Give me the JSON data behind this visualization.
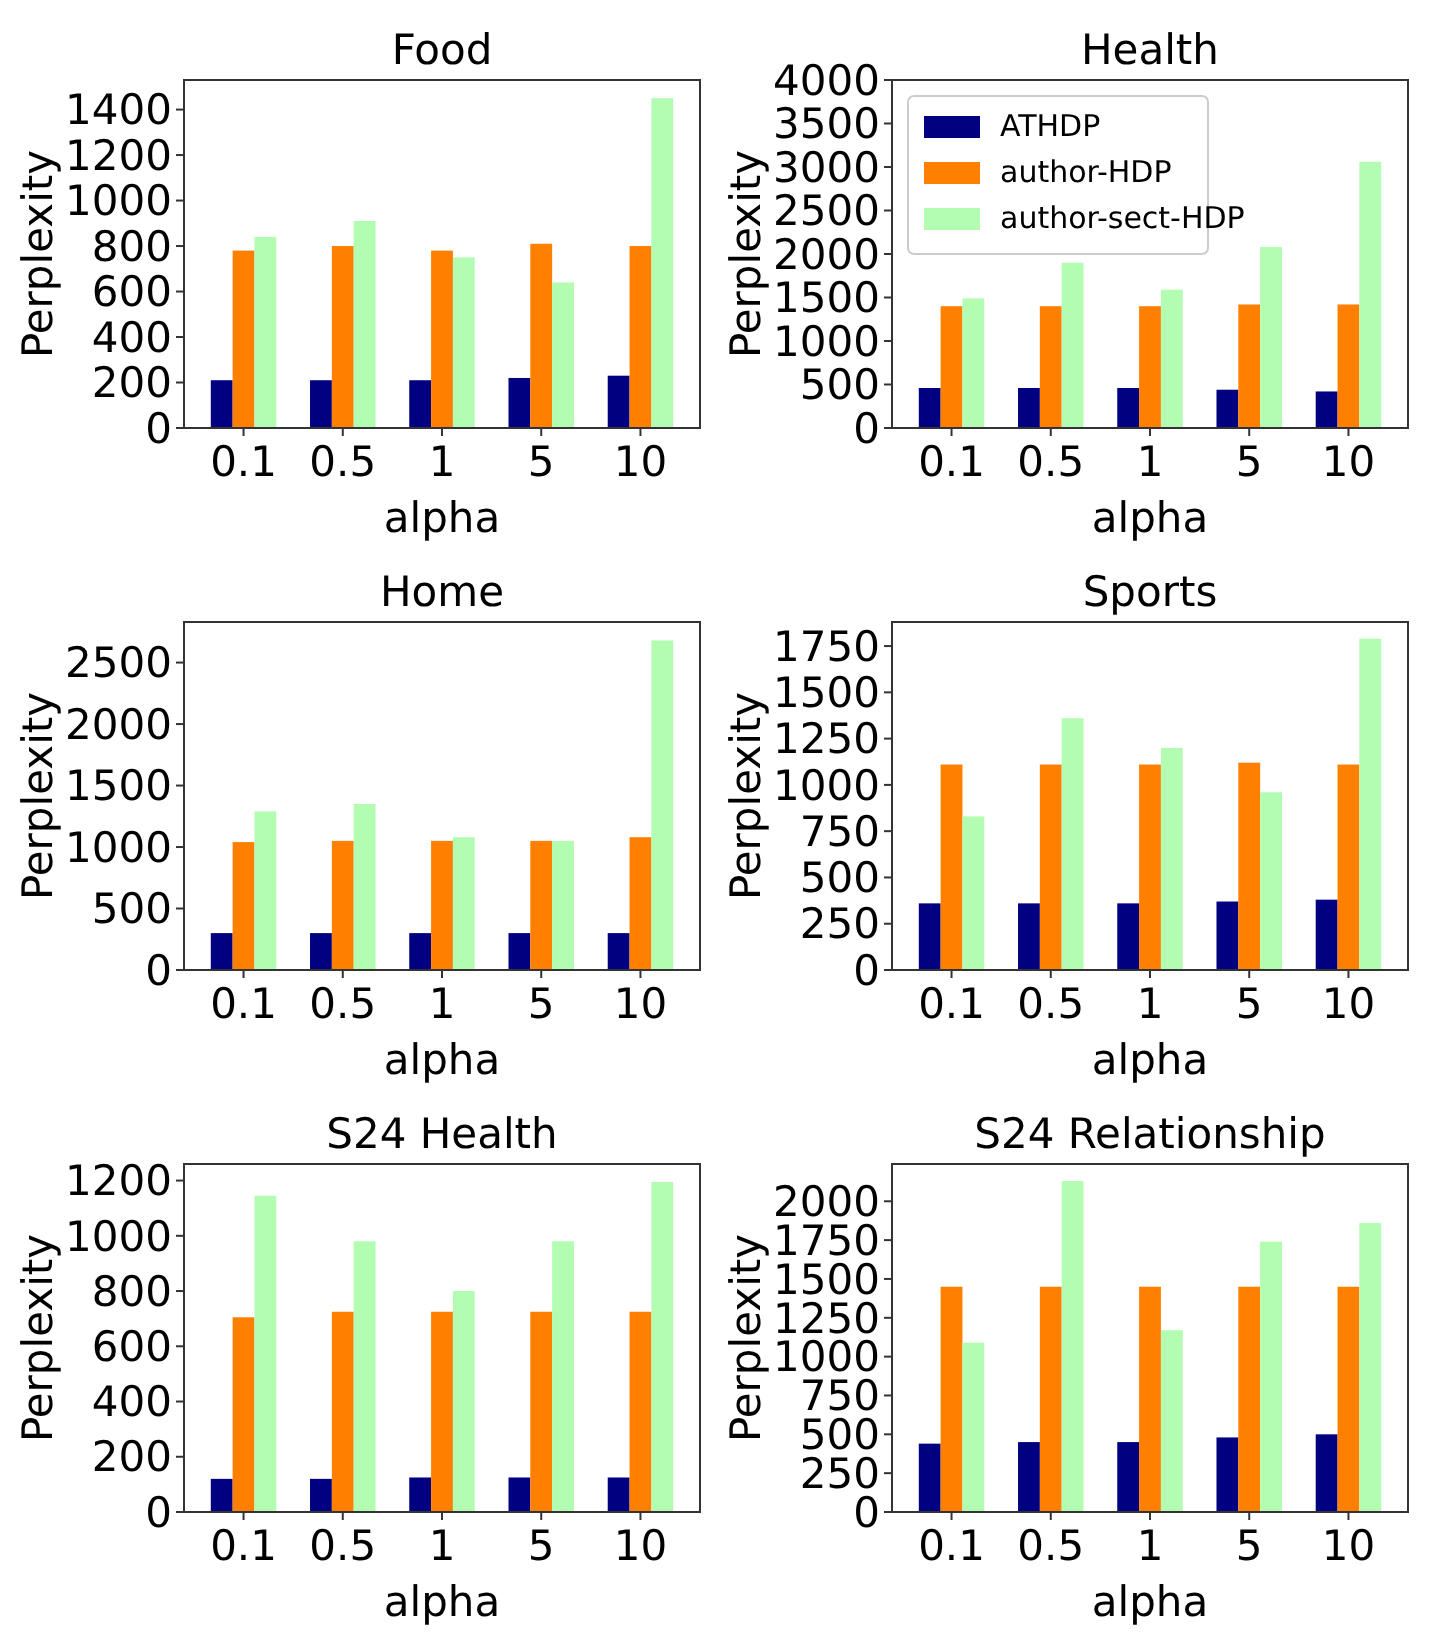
{
  "chart_data": [
    {
      "type": "bar",
      "title": "Food",
      "xlabel": "alpha",
      "ylabel": "Perplexity",
      "categories": [
        "0.1",
        "0.5",
        "1",
        "5",
        "10"
      ],
      "ylim": [
        0,
        1530
      ],
      "yticks": [
        0,
        200,
        400,
        600,
        800,
        1000,
        1200,
        1400
      ],
      "legend": false,
      "series": [
        {
          "color": "#000080",
          "values": [
            210,
            210,
            210,
            220,
            230
          ]
        },
        {
          "color": "#ff7f00",
          "values": [
            780,
            800,
            780,
            810,
            800
          ]
        },
        {
          "color": "#b2fdb2",
          "values": [
            840,
            910,
            750,
            640,
            1450
          ]
        }
      ]
    },
    {
      "type": "bar",
      "title": "Health",
      "xlabel": "alpha",
      "ylabel": "Perplexity",
      "categories": [
        "0.1",
        "0.5",
        "1",
        "5",
        "10"
      ],
      "ylim": [
        0,
        4000
      ],
      "yticks": [
        0,
        500,
        1000,
        1500,
        2000,
        2500,
        3000,
        3500,
        4000
      ],
      "legend": "top left",
      "series": [
        {
          "name": "ATHDP",
          "color": "#000080",
          "values": [
            460,
            460,
            460,
            440,
            420
          ]
        },
        {
          "name": "author-HDP",
          "color": "#ff7f00",
          "values": [
            1400,
            1400,
            1400,
            1420,
            1420
          ]
        },
        {
          "name": "author-sect-HDP",
          "color": "#b2fdb2",
          "values": [
            1490,
            1900,
            1590,
            2080,
            3060
          ]
        }
      ]
    },
    {
      "type": "bar",
      "title": "Home",
      "xlabel": "alpha",
      "ylabel": "Perplexity",
      "categories": [
        "0.1",
        "0.5",
        "1",
        "5",
        "10"
      ],
      "ylim": [
        0,
        2830
      ],
      "yticks": [
        0,
        500,
        1000,
        1500,
        2000,
        2500
      ],
      "legend": false,
      "series": [
        {
          "color": "#000080",
          "values": [
            300,
            300,
            300,
            300,
            300
          ]
        },
        {
          "color": "#ff7f00",
          "values": [
            1040,
            1050,
            1050,
            1050,
            1080
          ]
        },
        {
          "color": "#b2fdb2",
          "values": [
            1290,
            1350,
            1080,
            1050,
            2680
          ]
        }
      ]
    },
    {
      "type": "bar",
      "title": "Sports",
      "xlabel": "alpha",
      "ylabel": "Perplexity",
      "categories": [
        "0.1",
        "0.5",
        "1",
        "5",
        "10"
      ],
      "ylim": [
        0,
        1880
      ],
      "yticks": [
        0,
        250,
        500,
        750,
        1000,
        1250,
        1500,
        1750
      ],
      "legend": false,
      "series": [
        {
          "color": "#000080",
          "values": [
            360,
            360,
            360,
            370,
            380
          ]
        },
        {
          "color": "#ff7f00",
          "values": [
            1110,
            1110,
            1110,
            1120,
            1110
          ]
        },
        {
          "color": "#b2fdb2",
          "values": [
            830,
            1360,
            1200,
            960,
            1790
          ]
        }
      ]
    },
    {
      "type": "bar",
      "title": "S24 Health",
      "xlabel": "alpha",
      "ylabel": "Perplexity",
      "categories": [
        "0.1",
        "0.5",
        "1",
        "5",
        "10"
      ],
      "ylim": [
        0,
        1260
      ],
      "yticks": [
        0,
        200,
        400,
        600,
        800,
        1000,
        1200
      ],
      "legend": false,
      "series": [
        {
          "color": "#000080",
          "values": [
            120,
            120,
            125,
            125,
            125
          ]
        },
        {
          "color": "#ff7f00",
          "values": [
            705,
            725,
            725,
            725,
            725
          ]
        },
        {
          "color": "#b2fdb2",
          "values": [
            1145,
            980,
            800,
            980,
            1195
          ]
        }
      ]
    },
    {
      "type": "bar",
      "title": "S24 Relationship",
      "xlabel": "alpha",
      "ylabel": "Perplexity",
      "categories": [
        "0.1",
        "0.5",
        "1",
        "5",
        "10"
      ],
      "ylim": [
        0,
        2240
      ],
      "yticks": [
        0,
        250,
        500,
        750,
        1000,
        1250,
        1500,
        1750,
        2000
      ],
      "legend": false,
      "series": [
        {
          "color": "#000080",
          "values": [
            440,
            450,
            450,
            480,
            500
          ]
        },
        {
          "color": "#ff7f00",
          "values": [
            1450,
            1450,
            1450,
            1450,
            1450
          ]
        },
        {
          "color": "#b2fdb2",
          "values": [
            1090,
            2130,
            1170,
            1740,
            1860
          ]
        }
      ]
    }
  ]
}
